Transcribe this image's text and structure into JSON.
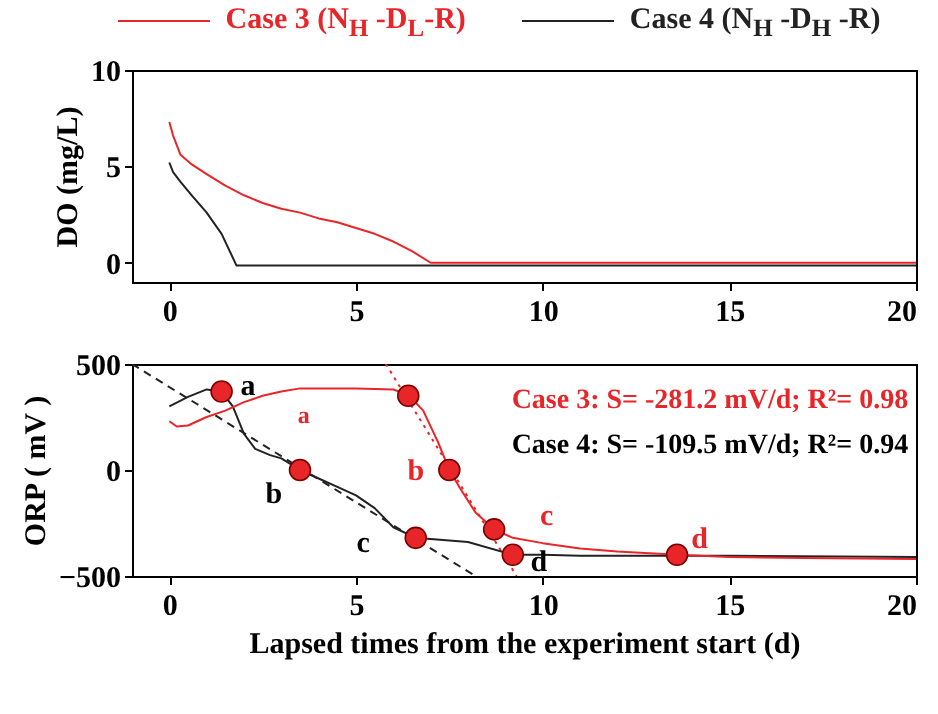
{
  "chart_data": [
    {
      "type": "line",
      "ylabel": "DO (mg/L)",
      "xlim": [
        -1,
        20
      ],
      "ylim": [
        -1,
        10
      ],
      "xticks": [
        0,
        5,
        10,
        15,
        20
      ],
      "yticks": [
        0,
        5,
        10
      ],
      "legend": "top",
      "series": [
        {
          "name": "Case 3 (N$_{H}$ -D$_{L}$-R)",
          "color": "#e8262a",
          "x": [
            0,
            0.1,
            0.3,
            0.6,
            1,
            1.5,
            2,
            2.5,
            3,
            3.5,
            4,
            4.5,
            5,
            5.5,
            6,
            6.5,
            7,
            8,
            10,
            15,
            20
          ],
          "values": [
            7.3,
            6.6,
            5.6,
            5.1,
            4.6,
            4,
            3.5,
            3.1,
            2.8,
            2.6,
            2.3,
            2.1,
            1.8,
            1.5,
            1.1,
            0.6,
            0,
            0,
            0,
            0,
            0
          ]
        },
        {
          "name": "Case 4 (N$_{H}$ -D$_{H}$ -R)",
          "color": "#222222",
          "x": [
            0,
            0.1,
            0.3,
            0.6,
            1,
            1.4,
            1.8,
            5,
            10,
            15,
            20
          ],
          "values": [
            5.2,
            4.7,
            4.2,
            3.5,
            2.6,
            1.5,
            -0.15,
            -0.15,
            -0.15,
            -0.15,
            -0.15
          ]
        }
      ]
    },
    {
      "type": "line",
      "xlabel": "Lapsed times from the experiment start (d)",
      "ylabel": "ORP ( mV )",
      "xlim": [
        -1,
        20
      ],
      "ylim": [
        -500,
        500
      ],
      "xticks": [
        0,
        5,
        10,
        15,
        20
      ],
      "yticks": [
        -500,
        0,
        500
      ],
      "series": [
        {
          "color": "#e8262a",
          "x": [
            0,
            0.2,
            0.5,
            1,
            1.5,
            2,
            2.5,
            3,
            3.5,
            4,
            5,
            6,
            6.4,
            6.8,
            7.2,
            7.5,
            7.8,
            8.2,
            8.7,
            9.2,
            10,
            11,
            12,
            13.6,
            15,
            17,
            20
          ],
          "values": [
            230,
            205,
            210,
            250,
            280,
            320,
            350,
            370,
            385,
            385,
            385,
            380,
            355,
            280,
            130,
            0,
            -90,
            -200,
            -280,
            -320,
            -345,
            -370,
            -385,
            -400,
            -410,
            -415,
            -420
          ]
        },
        {
          "color": "#222222",
          "x": [
            0,
            0.5,
            1,
            1.4,
            1.7,
            2,
            2.3,
            2.7,
            3,
            3.5,
            4,
            4.5,
            5,
            5.5,
            6,
            6.6,
            7,
            8,
            9.2,
            10,
            11,
            13.6,
            15,
            20
          ],
          "values": [
            300,
            345,
            380,
            370,
            300,
            170,
            100,
            70,
            55,
            0,
            -40,
            -80,
            -120,
            -180,
            -270,
            -320,
            -325,
            -340,
            -400,
            -400,
            -405,
            -405,
            -405,
            -410
          ]
        },
        {
          "type": "line",
          "line_style": "dashed",
          "color": "#222222",
          "x": [
            -1,
            8.2
          ],
          "values": [
            500,
            -500
          ]
        },
        {
          "type": "line",
          "line_style": "dotted",
          "color": "#e8262a",
          "x": [
            5.8,
            9.3
          ],
          "values": [
            500,
            -500
          ]
        },
        {
          "type": "scatter",
          "marker": "circle",
          "color": "#e8262a",
          "x": [
            1.4,
            3.5,
            6.6,
            9.2,
            6.4,
            7.5,
            8.7,
            13.6
          ],
          "values": [
            370,
            0,
            -320,
            -400,
            350,
            0,
            -280,
            -400
          ]
        }
      ],
      "annotations": [
        "Case 3:  S= -281.2 mV/d; R²= 0.98",
        "Case 4: S= -109.5 mV/d; R²= 0.94",
        "a",
        "b",
        "c",
        "d",
        "a",
        "b",
        "c",
        "d"
      ]
    }
  ]
}
